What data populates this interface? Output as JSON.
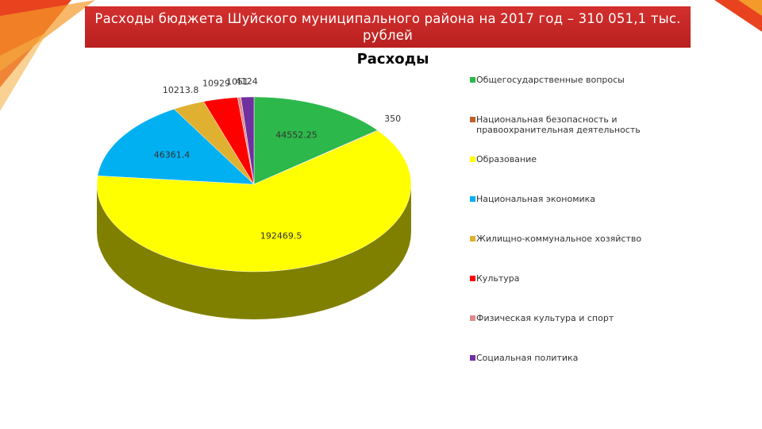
{
  "chart_data": {
    "type": "pie",
    "header": "Расходы бюджета Шуйского муниципального района на 2017 год – 310 051,1 тыс. рублей",
    "title": "Расходы",
    "categories": [
      "Общегосударственные вопросы",
      "Национальная безопасность и правоохранительная деятельность",
      "Образование",
      "Национальная экономика",
      "Жилищно-коммунальное хозяйство",
      "Культура",
      "Физическая культура и спорт",
      "Социальная политика"
    ],
    "values": [
      44552.25,
      350,
      192469.5,
      46361.4,
      10213.8,
      10929,
      1051,
      4124
    ],
    "colors": [
      "#2cb84a",
      "#c0602a",
      "#ffff00",
      "#00b0f0",
      "#e0b030",
      "#ff0000",
      "#e08c8c",
      "#7030a0"
    ]
  }
}
